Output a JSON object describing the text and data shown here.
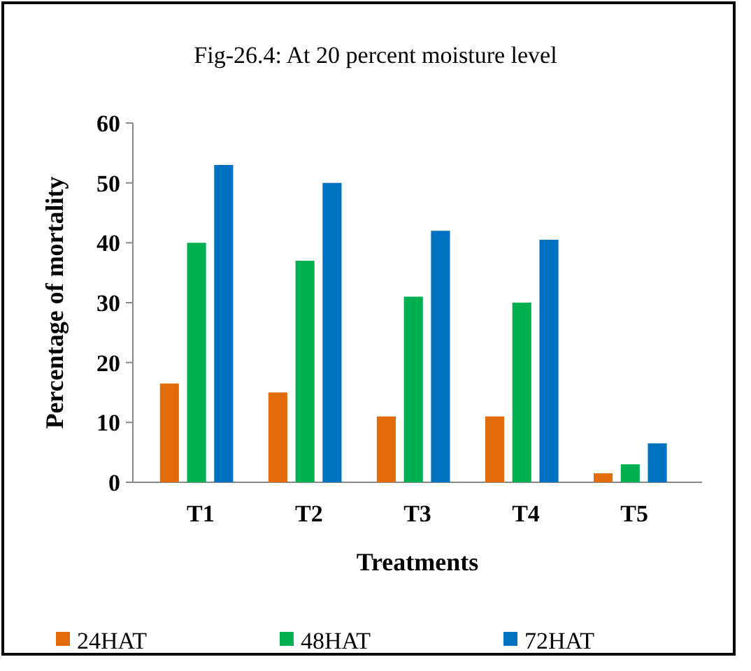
{
  "chart_data": {
    "type": "bar",
    "title": "Fig-26.4: At 20 percent moisture level",
    "xlabel": "Treatments",
    "ylabel": "Percentage of mortality",
    "categories": [
      "T1",
      "T2",
      "T3",
      "T4",
      "T5"
    ],
    "series": [
      {
        "name": "24HAT",
        "color": "#e36c0a",
        "values": [
          16.5,
          15,
          11,
          11,
          1.5
        ]
      },
      {
        "name": "48HAT",
        "color": "#00b050",
        "values": [
          40,
          37,
          31,
          30,
          3
        ]
      },
      {
        "name": "72HAT",
        "color": "#0070c0",
        "values": [
          53,
          50,
          42,
          40.5,
          6.5
        ]
      }
    ],
    "ylim": [
      0,
      60
    ],
    "yticks": [
      0,
      10,
      20,
      30,
      40,
      50,
      60
    ],
    "legend": "bottom"
  }
}
